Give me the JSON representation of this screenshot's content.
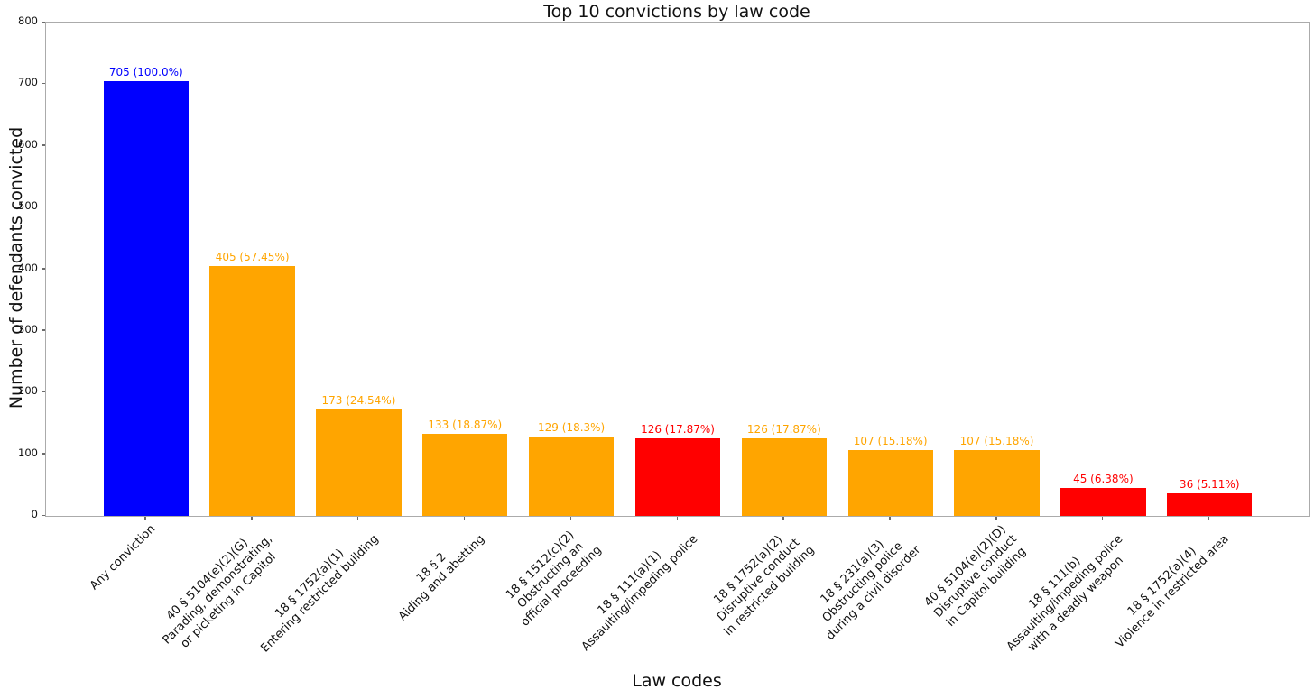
{
  "chart_data": {
    "type": "bar",
    "title": "Top 10 convictions by law code",
    "xlabel": "Law codes",
    "ylabel": "Number of defendants convicted",
    "ylim": [
      0,
      800
    ],
    "yticks": [
      0,
      100,
      200,
      300,
      400,
      500,
      600,
      700,
      800
    ],
    "grid": false,
    "legend": "none",
    "categories": [
      [
        "Any conviction"
      ],
      [
        "40 § 5104(e)(2)(G)",
        "Parading, demonstrating,",
        "or picketing in Capitol"
      ],
      [
        "18 § 1752(a)(1)",
        "Entering restricted building"
      ],
      [
        "18 § 2",
        "Aiding and abetting"
      ],
      [
        "18 § 1512(c)(2)",
        "Obstructing an",
        "official proceeding"
      ],
      [
        "18 § 111(a)(1)",
        "Assaulting/impeding police"
      ],
      [
        "18 § 1752(a)(2)",
        "Disruptive conduct",
        "in restricted building"
      ],
      [
        "18 § 231(a)(3)",
        "Obstructing police",
        "during a civil disorder"
      ],
      [
        "40 § 5104(e)(2)(D)",
        "Disruptive conduct",
        "in Capitol building"
      ],
      [
        "18 § 111(b)",
        "Assaulting/impeding police",
        "with a deadly weapon"
      ],
      [
        "18 § 1752(a)(4)",
        "Violence in restricted area"
      ]
    ],
    "values": [
      705,
      405,
      173,
      133,
      129,
      126,
      126,
      107,
      107,
      45,
      36
    ],
    "bar_labels": [
      "705 (100.0%)",
      "405 (57.45%)",
      "173 (24.54%)",
      "133 (18.87%)",
      "129 (18.3%)",
      "126 (17.87%)",
      "126 (17.87%)",
      "107 (15.18%)",
      "107 (15.18%)",
      "45 (6.38%)",
      "36 (5.11%)"
    ],
    "bar_colors": [
      "#0000ff",
      "#ffa500",
      "#ffa500",
      "#ffa500",
      "#ffa500",
      "#ff0000",
      "#ffa500",
      "#ffa500",
      "#ffa500",
      "#ff0000",
      "#ff0000"
    ],
    "colors": {
      "total_bar": "#0000ff",
      "default_bar": "#ffa500",
      "assault_bar": "#ff0000",
      "spine": "#ababab",
      "tick": "#6b6b6b",
      "text": "#111111"
    }
  }
}
